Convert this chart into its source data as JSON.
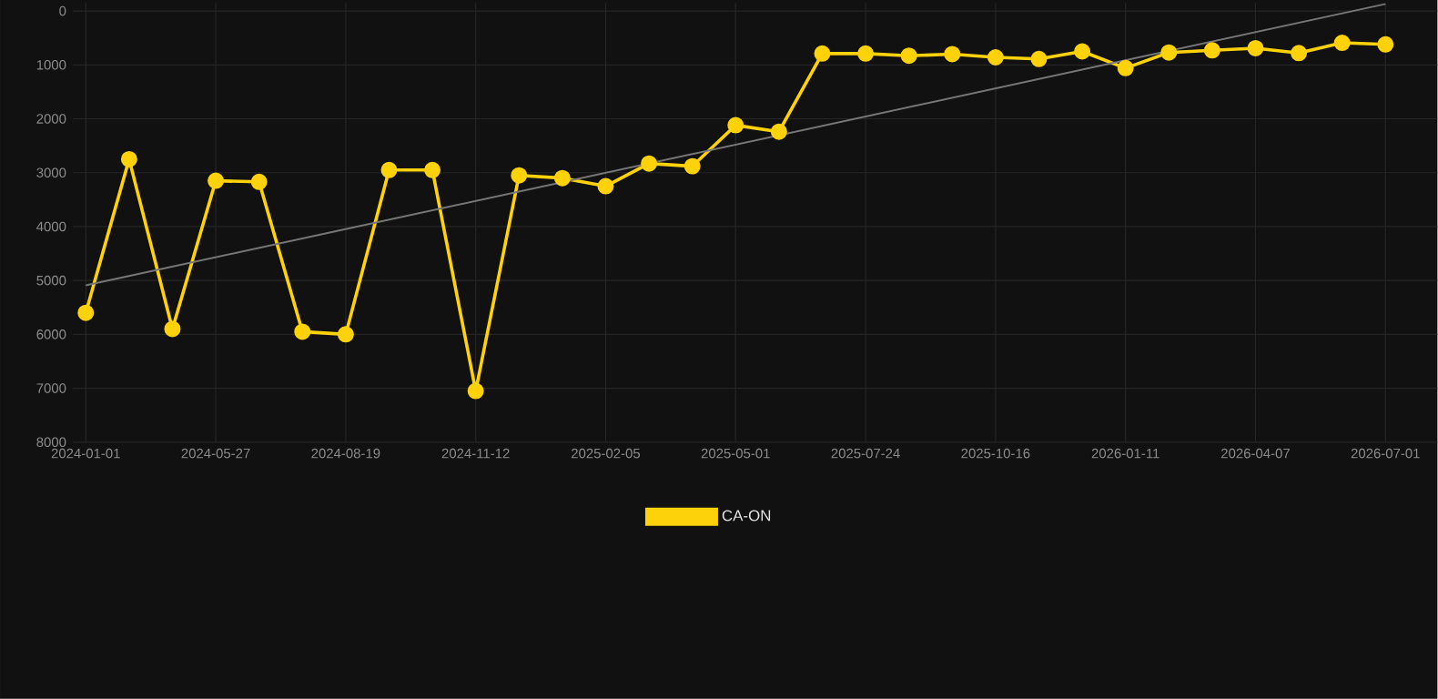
{
  "chart_data": {
    "type": "line",
    "categories": [
      "2024-01-01",
      null,
      null,
      "2024-05-27",
      null,
      null,
      "2024-08-19",
      null,
      null,
      "2024-11-12",
      null,
      null,
      "2025-02-05",
      null,
      null,
      "2025-05-01",
      null,
      null,
      "2025-07-24",
      null,
      null,
      "2025-10-16",
      null,
      null,
      "2026-01-11",
      null,
      null,
      "2026-04-07",
      null,
      null,
      "2026-07-01"
    ],
    "series": [
      {
        "name": "CA-ON",
        "color": "#fdd20a",
        "marker": "circle",
        "values": [
          5600,
          2750,
          5900,
          3150,
          3170,
          5950,
          6000,
          2950,
          2950,
          7050,
          3050,
          3100,
          3250,
          2830,
          2880,
          2120,
          2240,
          790,
          790,
          830,
          800,
          860,
          890,
          750,
          1060,
          770,
          730,
          690,
          780,
          590,
          620
        ]
      },
      {
        "type": "line",
        "color": "#777777",
        "marker": "none",
        "values": [
          5090,
          null,
          null,
          null,
          null,
          null,
          null,
          null,
          null,
          null,
          null,
          null,
          null,
          null,
          null,
          null,
          null,
          null,
          null,
          null,
          null,
          null,
          null,
          null,
          null,
          null,
          null,
          null,
          null,
          null,
          -130
        ]
      }
    ],
    "ylim": [
      8000,
      -150
    ],
    "yticks": [
      0,
      1000,
      2000,
      3000,
      4000,
      5000,
      6000,
      7000,
      8000
    ],
    "grid": true,
    "legend": "bottom"
  }
}
